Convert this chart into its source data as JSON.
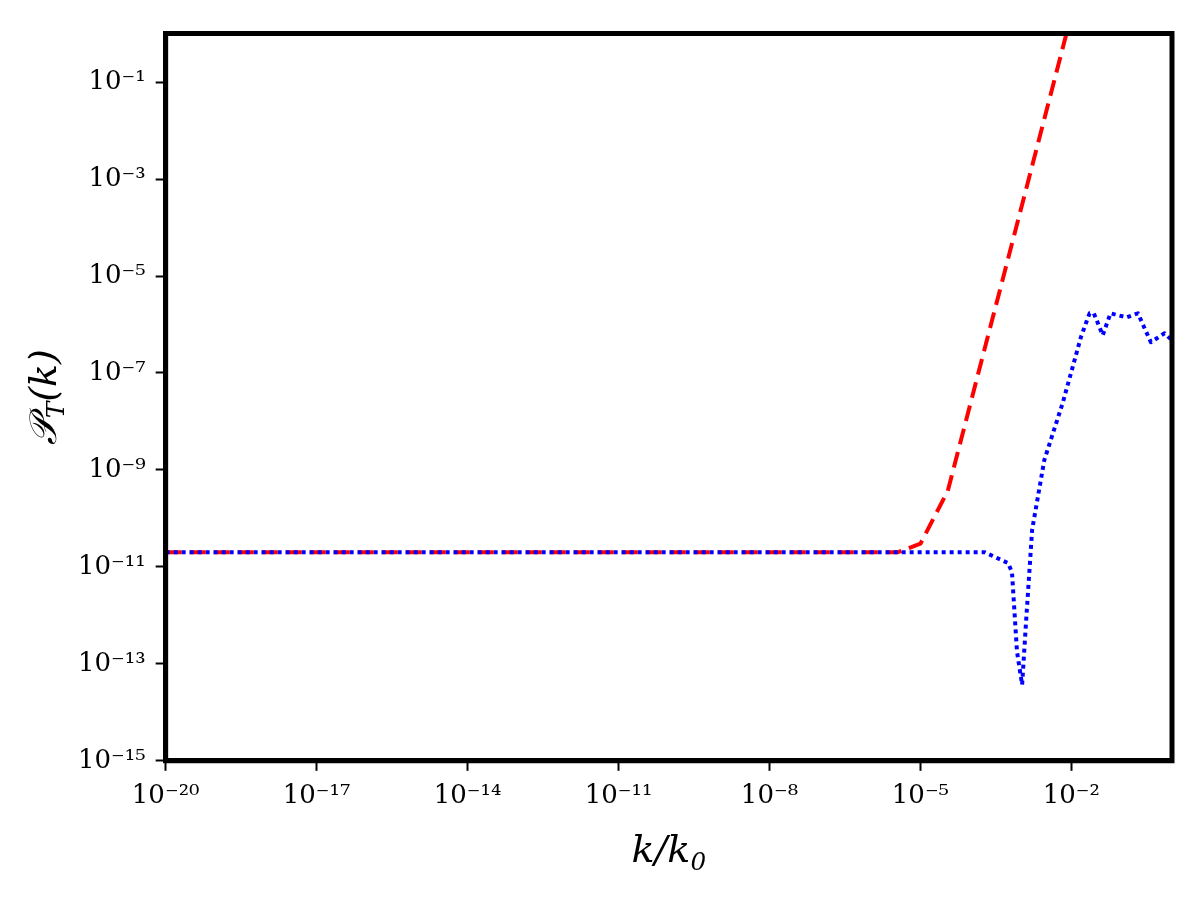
{
  "chart_data": {
    "type": "line",
    "xlabel": "k/k$_{0}$",
    "ylabel": "𝒫$_{T}$(k)",
    "log": "xy",
    "grid": false,
    "legend": false,
    "marker": "none",
    "xlim": [
      1e-20,
      1
    ],
    "ylim": [
      1e-15,
      1
    ],
    "xticks": [
      {
        "value": 1e-20,
        "label": "10⁻²⁰"
      },
      {
        "value": 1e-17,
        "label": "10⁻¹⁷"
      },
      {
        "value": 1e-14,
        "label": "10⁻¹⁴"
      },
      {
        "value": 1e-11,
        "label": "10⁻¹¹"
      },
      {
        "value": 1e-08,
        "label": "10⁻⁸"
      },
      {
        "value": 1e-05,
        "label": "10⁻⁵"
      },
      {
        "value": 0.01,
        "label": "10⁻²"
      }
    ],
    "yticks": [
      {
        "value": 1e-15,
        "label": "10⁻¹⁵"
      },
      {
        "value": 1e-13,
        "label": "10⁻¹³"
      },
      {
        "value": 1e-11,
        "label": "10⁻¹¹"
      },
      {
        "value": 1e-09,
        "label": "10⁻⁹"
      },
      {
        "value": 1e-07,
        "label": "10⁻⁷"
      },
      {
        "value": 1e-05,
        "label": "10⁻⁵"
      },
      {
        "value": 0.001,
        "label": "10⁻³"
      },
      {
        "value": 0.1,
        "label": "10⁻¹"
      }
    ],
    "series": [
      {
        "color": "#ff0000",
        "line_style": "dashed",
        "x": [
          1e-20,
          3.5e-06,
          1e-05,
          3.5e-05,
          0.008
        ],
        "values": [
          2e-11,
          2e-11,
          3e-11,
          3.7e-10,
          1
        ]
      },
      {
        "color": "#0000ff",
        "line_style": "dotted",
        "x": [
          1e-20,
          0.00019,
          0.00055,
          0.00066,
          0.00083,
          0.00105,
          0.00126,
          0.00166,
          0.0029,
          0.0068,
          0.0155,
          0.023,
          0.028,
          0.042,
          0.06,
          0.126,
          0.21,
          0.38,
          0.71,
          1
        ],
        "values": [
          2e-11,
          2e-11,
          1.2e-11,
          7.8e-12,
          1.8e-13,
          3.7e-14,
          7.6e-13,
          5.8e-11,
          1.6e-09,
          2.5e-08,
          5.5e-07,
          1.7e-06,
          1.7e-06,
          6e-07,
          1.7e-06,
          1.4e-06,
          1.7e-06,
          4.3e-07,
          6.6e-07,
          4.7e-07
        ]
      }
    ]
  }
}
